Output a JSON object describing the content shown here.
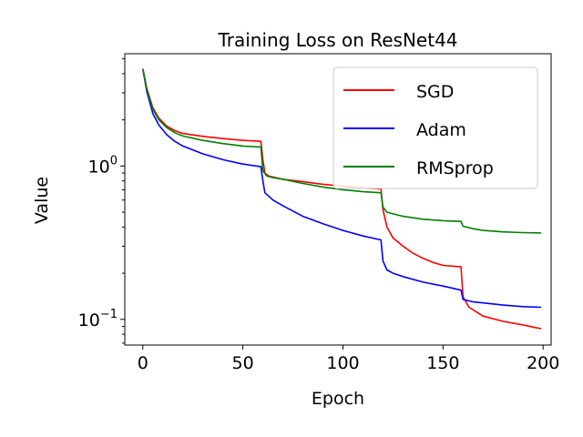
{
  "chart_data": {
    "type": "line",
    "title": "Training Loss on ResNet44",
    "xlabel": "Epoch",
    "ylabel": "Value",
    "yscale": "log",
    "xlim": [
      -9,
      204
    ],
    "ylim": [
      0.068,
      5.4
    ],
    "xticks": [
      0,
      50,
      100,
      150,
      200
    ],
    "yticks": [
      {
        "value": 1.0,
        "base": "10",
        "exp": "0"
      },
      {
        "value": 0.1,
        "base": "10",
        "exp": "−1"
      }
    ],
    "legend_position": "upper right",
    "series": [
      {
        "name": "SGD",
        "color": "#ff0000",
        "points": [
          [
            0,
            4.3
          ],
          [
            2,
            3.2
          ],
          [
            5,
            2.4
          ],
          [
            8,
            2.05
          ],
          [
            12,
            1.82
          ],
          [
            16,
            1.7
          ],
          [
            20,
            1.63
          ],
          [
            30,
            1.56
          ],
          [
            40,
            1.51
          ],
          [
            50,
            1.47
          ],
          [
            59,
            1.45
          ],
          [
            60,
            1.1
          ],
          [
            61,
            0.9
          ],
          [
            63,
            0.86
          ],
          [
            70,
            0.82
          ],
          [
            80,
            0.79
          ],
          [
            90,
            0.76
          ],
          [
            100,
            0.74
          ],
          [
            110,
            0.72
          ],
          [
            119,
            0.71
          ],
          [
            120,
            0.52
          ],
          [
            122,
            0.4
          ],
          [
            125,
            0.34
          ],
          [
            130,
            0.3
          ],
          [
            135,
            0.27
          ],
          [
            140,
            0.25
          ],
          [
            145,
            0.235
          ],
          [
            150,
            0.225
          ],
          [
            159,
            0.22
          ],
          [
            160,
            0.14
          ],
          [
            163,
            0.12
          ],
          [
            170,
            0.105
          ],
          [
            180,
            0.097
          ],
          [
            190,
            0.092
          ],
          [
            195,
            0.089
          ],
          [
            199,
            0.087
          ]
        ]
      },
      {
        "name": "Adam",
        "color": "#0000ff",
        "points": [
          [
            0,
            4.3
          ],
          [
            2,
            3.05
          ],
          [
            5,
            2.2
          ],
          [
            8,
            1.85
          ],
          [
            12,
            1.6
          ],
          [
            16,
            1.45
          ],
          [
            20,
            1.35
          ],
          [
            30,
            1.2
          ],
          [
            40,
            1.1
          ],
          [
            50,
            1.03
          ],
          [
            59,
            0.99
          ],
          [
            60,
            0.8
          ],
          [
            61,
            0.67
          ],
          [
            65,
            0.6
          ],
          [
            70,
            0.55
          ],
          [
            80,
            0.47
          ],
          [
            90,
            0.42
          ],
          [
            100,
            0.38
          ],
          [
            110,
            0.35
          ],
          [
            119,
            0.33
          ],
          [
            120,
            0.24
          ],
          [
            122,
            0.21
          ],
          [
            125,
            0.2
          ],
          [
            130,
            0.19
          ],
          [
            140,
            0.175
          ],
          [
            150,
            0.165
          ],
          [
            159,
            0.155
          ],
          [
            160,
            0.135
          ],
          [
            165,
            0.13
          ],
          [
            170,
            0.128
          ],
          [
            180,
            0.124
          ],
          [
            190,
            0.121
          ],
          [
            199,
            0.12
          ]
        ]
      },
      {
        "name": "RMSprop",
        "color": "#008000",
        "points": [
          [
            0,
            4.3
          ],
          [
            2,
            3.15
          ],
          [
            5,
            2.35
          ],
          [
            8,
            2.0
          ],
          [
            12,
            1.78
          ],
          [
            16,
            1.65
          ],
          [
            20,
            1.57
          ],
          [
            30,
            1.47
          ],
          [
            40,
            1.4
          ],
          [
            50,
            1.35
          ],
          [
            59,
            1.33
          ],
          [
            60,
            0.93
          ],
          [
            62,
            0.86
          ],
          [
            65,
            0.84
          ],
          [
            70,
            0.82
          ],
          [
            80,
            0.77
          ],
          [
            90,
            0.73
          ],
          [
            100,
            0.7
          ],
          [
            110,
            0.68
          ],
          [
            119,
            0.67
          ],
          [
            120,
            0.54
          ],
          [
            122,
            0.5
          ],
          [
            130,
            0.47
          ],
          [
            140,
            0.45
          ],
          [
            150,
            0.44
          ],
          [
            159,
            0.435
          ],
          [
            160,
            0.405
          ],
          [
            165,
            0.39
          ],
          [
            170,
            0.38
          ],
          [
            180,
            0.372
          ],
          [
            190,
            0.368
          ],
          [
            199,
            0.366
          ]
        ]
      }
    ]
  }
}
